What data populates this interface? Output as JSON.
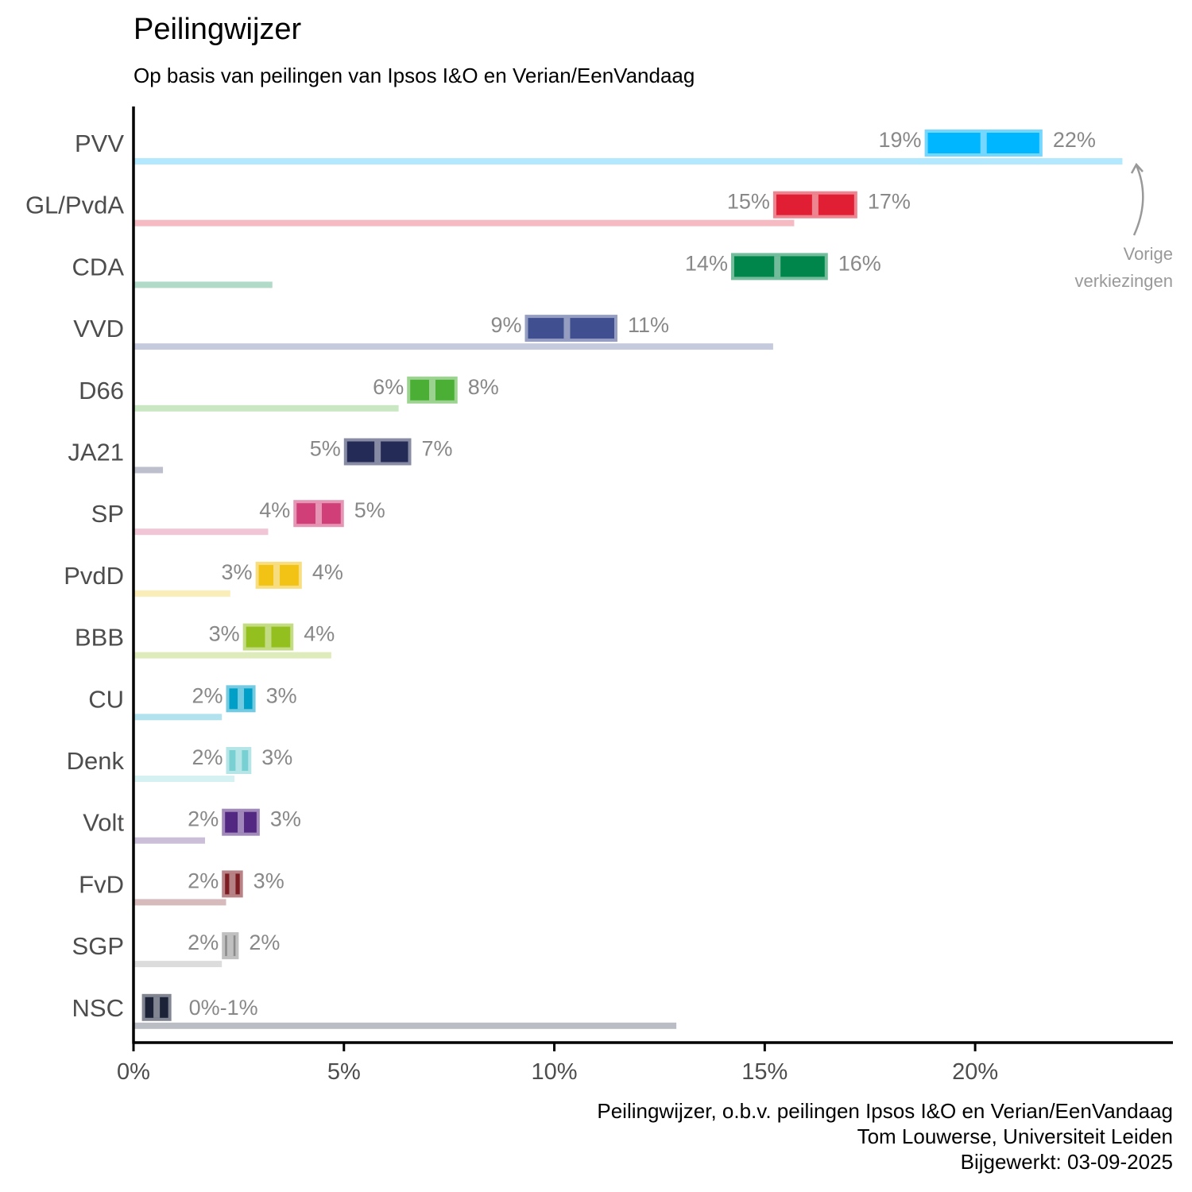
{
  "title": "Peilingwijzer",
  "subtitle": "Op basis van peilingen van Ipsos I&O en Verian/EenVandaag",
  "caption": {
    "line1": "Peilingwijzer, o.b.v. peilingen Ipsos I&O en Verian/EenVandaag",
    "line2": "Tom Louwerse, Universiteit Leiden",
    "line3": "Bijgewerkt: 03-09-2025"
  },
  "annotation": {
    "line1": "Vorige",
    "line2": "verkiezingen",
    "color": "#999999"
  },
  "chart_data": {
    "type": "bar",
    "orientation": "horizontal",
    "xlim": [
      0,
      24.7
    ],
    "x_ticks": [
      {
        "value": 0,
        "label": "0%"
      },
      {
        "value": 5,
        "label": "5%"
      },
      {
        "value": 10,
        "label": "10%"
      },
      {
        "value": 15,
        "label": "15%"
      },
      {
        "value": 20,
        "label": "20%"
      }
    ],
    "grid": false,
    "series": [
      {
        "name": "Peilingwijzer",
        "kind": "interval"
      },
      {
        "name": "Vorige verkiezingen",
        "kind": "bar"
      }
    ],
    "parties": [
      {
        "name": "PVV",
        "low": 18.8,
        "high": 21.6,
        "mid": 20.2,
        "low_label": "19%",
        "high_label": "22%",
        "previous": 23.5,
        "color": "#00B7FF"
      },
      {
        "name": "GL/PvdA",
        "low": 15.2,
        "high": 17.2,
        "mid": 16.2,
        "low_label": "15%",
        "high_label": "17%",
        "previous": 15.7,
        "color": "#E01F34"
      },
      {
        "name": "CDA",
        "low": 14.2,
        "high": 16.5,
        "mid": 15.3,
        "low_label": "14%",
        "high_label": "16%",
        "previous": 3.3,
        "color": "#00864A"
      },
      {
        "name": "VVD",
        "low": 9.3,
        "high": 11.5,
        "mid": 10.3,
        "low_label": "9%",
        "high_label": "11%",
        "previous": 15.2,
        "color": "#3F4F8F"
      },
      {
        "name": "D66",
        "low": 6.5,
        "high": 7.7,
        "mid": 7.1,
        "low_label": "6%",
        "high_label": "8%",
        "previous": 6.3,
        "color": "#4BAE35"
      },
      {
        "name": "JA21",
        "low": 5.0,
        "high": 6.6,
        "mid": 5.8,
        "low_label": "5%",
        "high_label": "7%",
        "previous": 0.7,
        "color": "#242B57"
      },
      {
        "name": "SP",
        "low": 3.8,
        "high": 5.0,
        "mid": 4.4,
        "low_label": "4%",
        "high_label": "5%",
        "previous": 3.2,
        "color": "#D13F78"
      },
      {
        "name": "PvdD",
        "low": 2.9,
        "high": 4.0,
        "mid": 3.4,
        "low_label": "3%",
        "high_label": "4%",
        "previous": 2.3,
        "color": "#F2C214"
      },
      {
        "name": "BBB",
        "low": 2.6,
        "high": 3.8,
        "mid": 3.2,
        "low_label": "3%",
        "high_label": "4%",
        "previous": 4.7,
        "color": "#93C01F"
      },
      {
        "name": "CU",
        "low": 2.2,
        "high": 2.9,
        "mid": 2.55,
        "low_label": "2%",
        "high_label": "3%",
        "previous": 2.1,
        "color": "#009FC8"
      },
      {
        "name": "Denk",
        "low": 2.2,
        "high": 2.8,
        "mid": 2.5,
        "low_label": "2%",
        "high_label": "3%",
        "previous": 2.4,
        "color": "#78D0D3"
      },
      {
        "name": "Volt",
        "low": 2.1,
        "high": 3.0,
        "mid": 2.55,
        "low_label": "2%",
        "high_label": "3%",
        "previous": 1.7,
        "color": "#532882"
      },
      {
        "name": "FvD",
        "low": 2.1,
        "high": 2.6,
        "mid": 2.35,
        "low_label": "2%",
        "high_label": "3%",
        "previous": 2.2,
        "color": "#7B1D22"
      },
      {
        "name": "SGP",
        "low": 2.1,
        "high": 2.5,
        "mid": 2.3,
        "low_label": "2%",
        "high_label": "2%",
        "previous": 2.1,
        "color": "#8C8C8C"
      },
      {
        "name": "NSC",
        "low": 0.2,
        "high": 0.9,
        "mid": 0.55,
        "range_label": "0%-1%",
        "previous": 12.9,
        "color": "#1C2339"
      }
    ]
  }
}
